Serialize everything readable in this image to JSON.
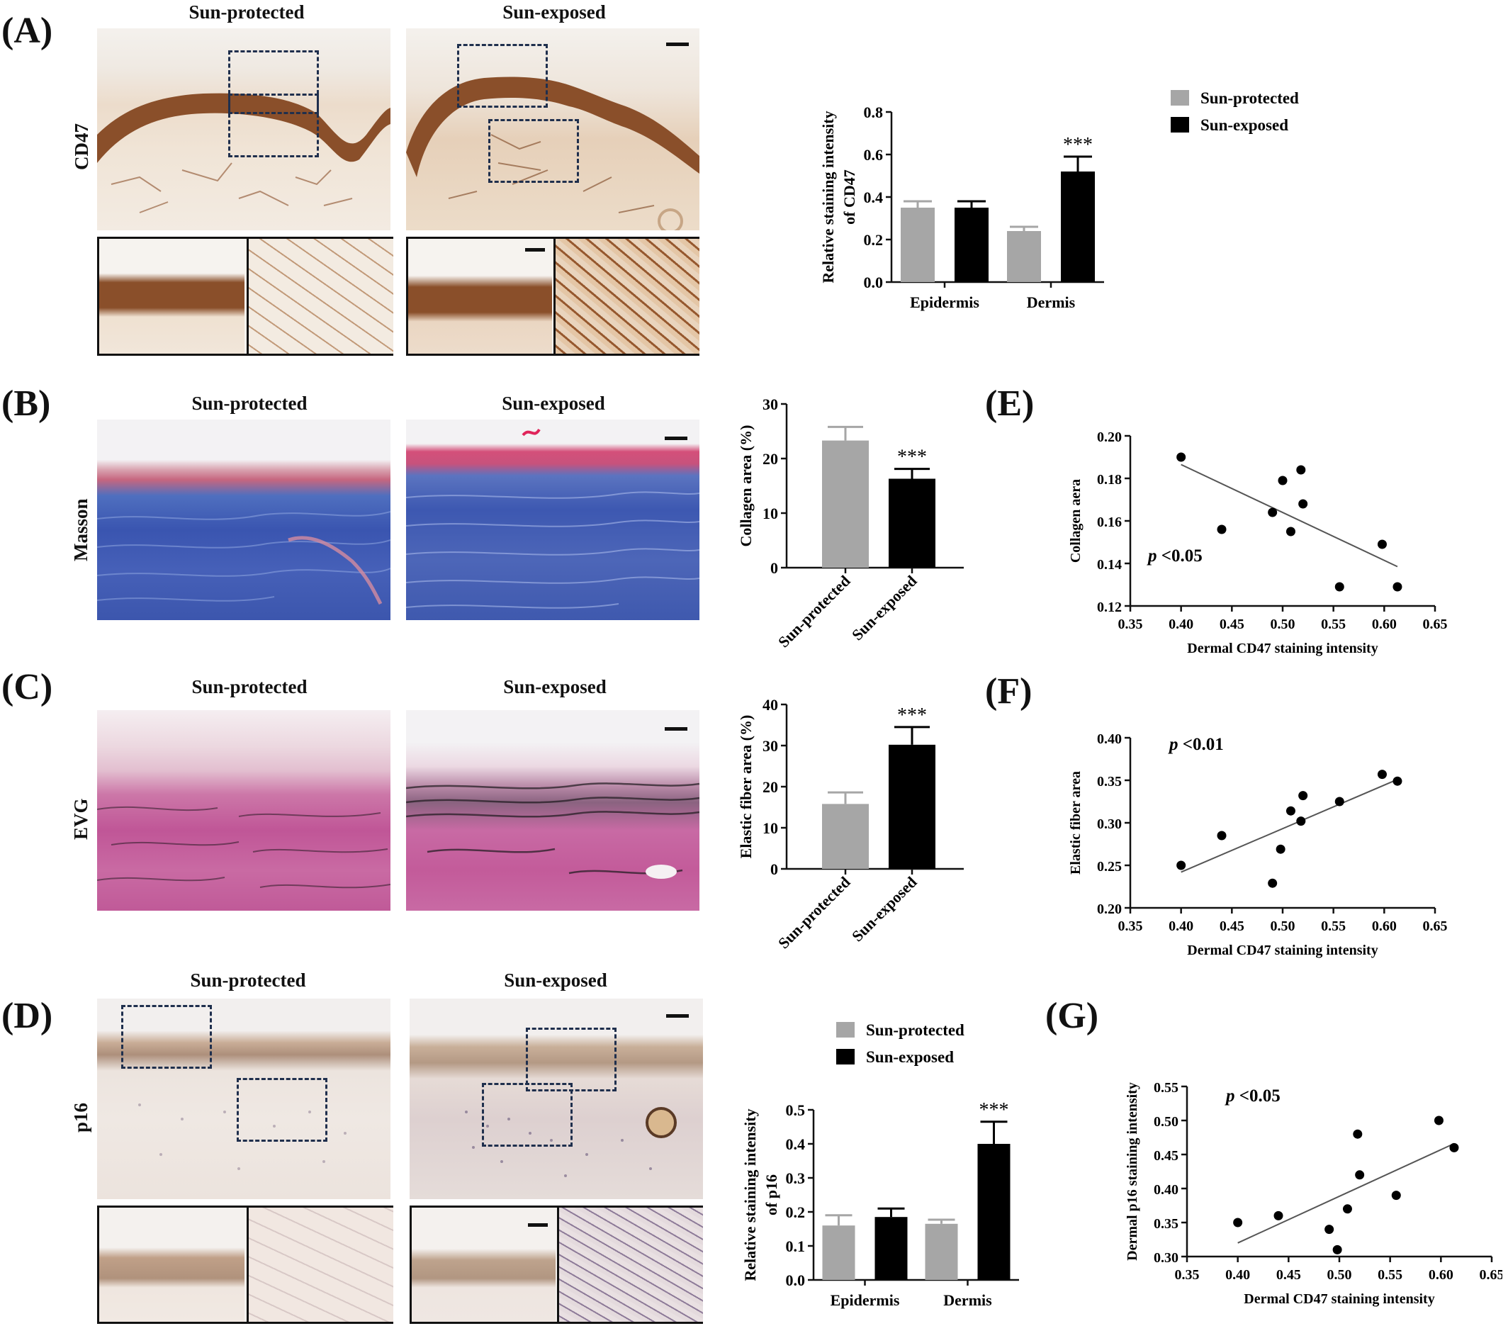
{
  "panels": {
    "A": {
      "label": "(A)",
      "col_left": "Sun-protected",
      "col_right": "Sun-exposed",
      "row_label": "CD47"
    },
    "B": {
      "label": "(B)",
      "col_left": "Sun-protected",
      "col_right": "Sun-exposed",
      "row_label": "Masson"
    },
    "C": {
      "label": "(C)",
      "col_left": "Sun-protected",
      "col_right": "Sun-exposed",
      "row_label": "EVG"
    },
    "D": {
      "label": "(D)",
      "col_left": "Sun-protected",
      "col_right": "Sun-exposed",
      "row_label": "p16"
    },
    "E": {
      "label": "(E)"
    },
    "F": {
      "label": "(F)"
    },
    "G": {
      "label": "(G)"
    }
  },
  "colors": {
    "protected_bar": "#a6a6a6",
    "exposed_bar": "#000000",
    "dab_brown": "#8a4f2a",
    "masson_blue": "#3f5fb5",
    "evg_pink": "#c96aa3"
  },
  "chart_data": [
    {
      "id": "A",
      "type": "bar",
      "ylabel": "Relative staining intensity of CD47",
      "categories": [
        "Epidermis",
        "Dermis"
      ],
      "ylim": [
        0,
        0.8
      ],
      "yticks": [
        "0.0",
        "0.2",
        "0.4",
        "0.6",
        "0.8"
      ],
      "legend": [
        "Sun-protected",
        "Sun-exposed"
      ],
      "series": [
        {
          "name": "Sun-protected",
          "values": [
            0.35,
            0.24
          ],
          "errors": [
            0.03,
            0.02
          ]
        },
        {
          "name": "Sun-exposed",
          "values": [
            0.35,
            0.52
          ],
          "errors": [
            0.03,
            0.07
          ]
        }
      ],
      "annotations": [
        {
          "category": "Dermis",
          "series": "Sun-exposed",
          "text": "***"
        }
      ]
    },
    {
      "id": "B",
      "type": "bar",
      "ylabel": "Collagen area (%)",
      "categories": [
        "Sun-protected",
        "Sun-exposed"
      ],
      "ylim": [
        0,
        30
      ],
      "yticks": [
        "0",
        "10",
        "20",
        "30"
      ],
      "values": [
        23.3,
        16.3
      ],
      "errors": [
        2.5,
        1.8
      ],
      "annotations": [
        {
          "category": "Sun-exposed",
          "text": "***"
        }
      ]
    },
    {
      "id": "C",
      "type": "bar",
      "ylabel": "Elastic fiber area (%)",
      "categories": [
        "Sun-protected",
        "Sun-exposed"
      ],
      "ylim": [
        0,
        40
      ],
      "yticks": [
        "0",
        "10",
        "20",
        "30",
        "40"
      ],
      "values": [
        15.8,
        30.2
      ],
      "errors": [
        2.8,
        4.3
      ],
      "annotations": [
        {
          "category": "Sun-exposed",
          "text": "***"
        }
      ]
    },
    {
      "id": "D",
      "type": "bar",
      "ylabel": "Relative staining intensity of p16",
      "categories": [
        "Epidermis",
        "Dermis"
      ],
      "ylim": [
        0,
        0.5
      ],
      "yticks": [
        "0.0",
        "0.1",
        "0.2",
        "0.3",
        "0.4",
        "0.5"
      ],
      "legend": [
        "Sun-protected",
        "Sun-exposed"
      ],
      "series": [
        {
          "name": "Sun-protected",
          "values": [
            0.16,
            0.165
          ],
          "errors": [
            0.03,
            0.012
          ]
        },
        {
          "name": "Sun-exposed",
          "values": [
            0.185,
            0.4
          ],
          "errors": [
            0.025,
            0.065
          ]
        }
      ],
      "annotations": [
        {
          "category": "Dermis",
          "series": "Sun-exposed",
          "text": "***"
        }
      ]
    },
    {
      "id": "E",
      "type": "scatter",
      "xlabel": "Dermal CD47 staining intensity",
      "ylabel": "Collagen aera",
      "xlim": [
        0.35,
        0.65
      ],
      "ylim": [
        0.12,
        0.2
      ],
      "xticks": [
        "0.35",
        "0.40",
        "0.45",
        "0.50",
        "0.55",
        "0.60",
        "0.65"
      ],
      "yticks": [
        "0.12",
        "0.14",
        "0.16",
        "0.18",
        "0.20"
      ],
      "points": [
        [
          0.4,
          0.19
        ],
        [
          0.44,
          0.156
        ],
        [
          0.49,
          0.164
        ],
        [
          0.5,
          0.179
        ],
        [
          0.508,
          0.155
        ],
        [
          0.518,
          0.184
        ],
        [
          0.52,
          0.168
        ],
        [
          0.556,
          0.129
        ],
        [
          0.598,
          0.149
        ],
        [
          0.613,
          0.129
        ]
      ],
      "fit": [
        [
          0.4,
          0.1865
        ],
        [
          0.613,
          0.1385
        ]
      ],
      "annotation": "p <0.05"
    },
    {
      "id": "F",
      "type": "scatter",
      "xlabel": "Dermal CD47 staining intensity",
      "ylabel": "Elastic fiber area",
      "xlim": [
        0.35,
        0.65
      ],
      "ylim": [
        0.2,
        0.4
      ],
      "xticks": [
        "0.35",
        "0.40",
        "0.45",
        "0.50",
        "0.55",
        "0.60",
        "0.65"
      ],
      "yticks": [
        "0.20",
        "0.25",
        "0.30",
        "0.35",
        "0.40"
      ],
      "points": [
        [
          0.4,
          0.25
        ],
        [
          0.44,
          0.285
        ],
        [
          0.49,
          0.229
        ],
        [
          0.498,
          0.269
        ],
        [
          0.508,
          0.314
        ],
        [
          0.518,
          0.302
        ],
        [
          0.52,
          0.332
        ],
        [
          0.556,
          0.325
        ],
        [
          0.598,
          0.357
        ],
        [
          0.613,
          0.349
        ]
      ],
      "fit": [
        [
          0.4,
          0.242
        ],
        [
          0.613,
          0.351
        ]
      ],
      "annotation": "p <0.01"
    },
    {
      "id": "G",
      "type": "scatter",
      "xlabel": "Dermal CD47 staining intensity",
      "ylabel": "Dermal p16 staining intensity",
      "xlim": [
        0.35,
        0.65
      ],
      "ylim": [
        0.3,
        0.55
      ],
      "xticks": [
        "0.35",
        "0.40",
        "0.45",
        "0.50",
        "0.55",
        "0.60",
        "0.65"
      ],
      "yticks": [
        "0.30",
        "0.35",
        "0.40",
        "0.45",
        "0.50",
        "0.55"
      ],
      "points": [
        [
          0.4,
          0.35
        ],
        [
          0.44,
          0.36
        ],
        [
          0.49,
          0.34
        ],
        [
          0.498,
          0.31
        ],
        [
          0.508,
          0.37
        ],
        [
          0.518,
          0.48
        ],
        [
          0.52,
          0.42
        ],
        [
          0.556,
          0.39
        ],
        [
          0.598,
          0.5
        ],
        [
          0.613,
          0.46
        ]
      ],
      "fit": [
        [
          0.4,
          0.32
        ],
        [
          0.613,
          0.466
        ]
      ],
      "annotation": "p <0.05"
    }
  ]
}
